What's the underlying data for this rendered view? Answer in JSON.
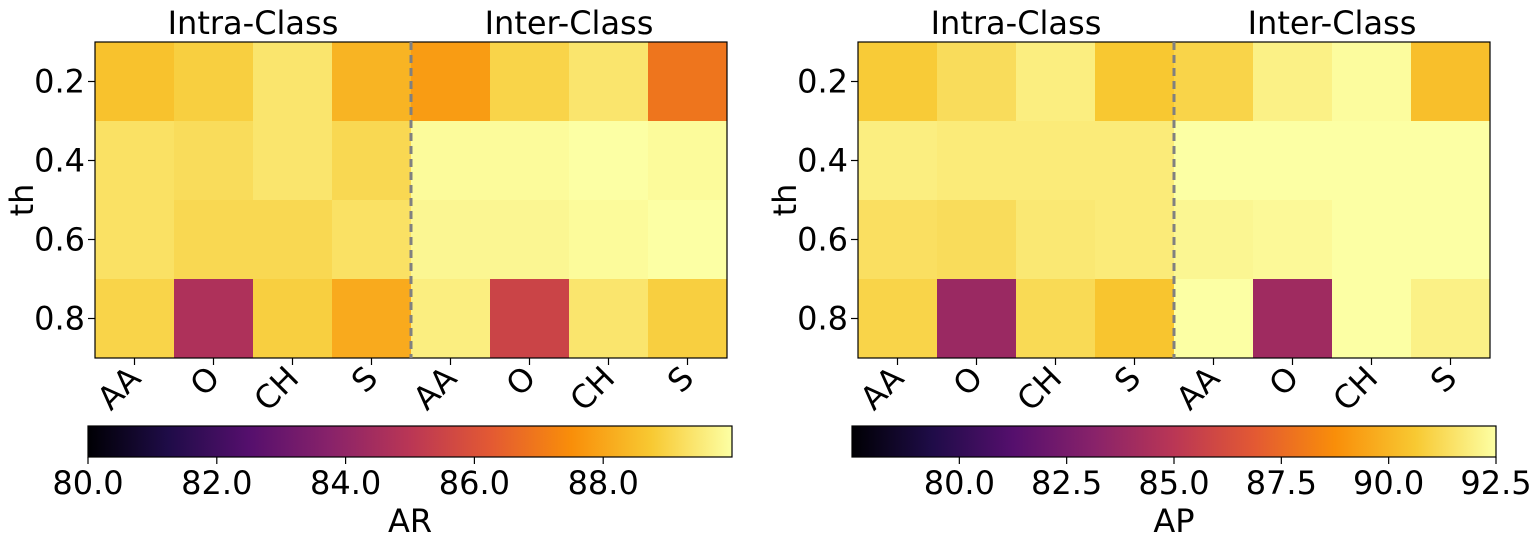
{
  "chart_data": [
    {
      "type": "heatmap",
      "ylabel": "th",
      "group_labels": [
        "Intra-Class",
        "Inter-Class"
      ],
      "x_categories": [
        "AA",
        "O",
        "CH",
        "S",
        "AA",
        "O",
        "CH",
        "S"
      ],
      "y_categories": [
        "0.2",
        "0.4",
        "0.6",
        "0.8"
      ],
      "values": [
        [
          88.6,
          88.9,
          89.4,
          88.3,
          87.8,
          89.0,
          89.4,
          86.9
        ],
        [
          89.3,
          89.2,
          89.4,
          89.1,
          89.9,
          89.9,
          90.0,
          89.9
        ],
        [
          89.3,
          89.1,
          89.1,
          89.3,
          89.8,
          89.8,
          89.9,
          90.0
        ],
        [
          89.0,
          84.7,
          88.9,
          88.1,
          89.6,
          85.5,
          89.4,
          88.9
        ]
      ],
      "colorbar": {
        "label": "AR",
        "min": 80.0,
        "max": 90.0,
        "ticks": [
          "80.0",
          "82.0",
          "84.0",
          "86.0",
          "88.0"
        ],
        "tick_values": [
          80,
          82,
          84,
          86,
          88
        ]
      },
      "divider": "dashed gray line between column 4 and 5"
    },
    {
      "type": "heatmap",
      "ylabel": "th",
      "group_labels": [
        "Intra-Class",
        "Inter-Class"
      ],
      "x_categories": [
        "AA",
        "O",
        "CH",
        "S",
        "AA",
        "O",
        "CH",
        "S"
      ],
      "y_categories": [
        "0.2",
        "0.4",
        "0.6",
        "0.8"
      ],
      "values": [
        [
          90.7,
          91.3,
          91.9,
          90.6,
          91.0,
          92.0,
          92.4,
          90.3
        ],
        [
          91.9,
          91.8,
          91.8,
          91.8,
          92.5,
          92.5,
          92.5,
          92.5
        ],
        [
          91.4,
          91.3,
          91.7,
          91.8,
          92.2,
          92.3,
          92.5,
          92.5
        ],
        [
          91.0,
          83.8,
          91.2,
          90.5,
          92.5,
          84.0,
          92.5,
          92.0
        ]
      ],
      "colorbar": {
        "label": "AP",
        "min": 77.5,
        "max": 92.5,
        "ticks": [
          "80.0",
          "82.5",
          "85.0",
          "87.5",
          "90.0",
          "92.5"
        ],
        "tick_values": [
          80,
          82.5,
          85,
          87.5,
          90,
          92.5
        ]
      },
      "divider": "dashed gray line between column 4 and 5"
    }
  ]
}
